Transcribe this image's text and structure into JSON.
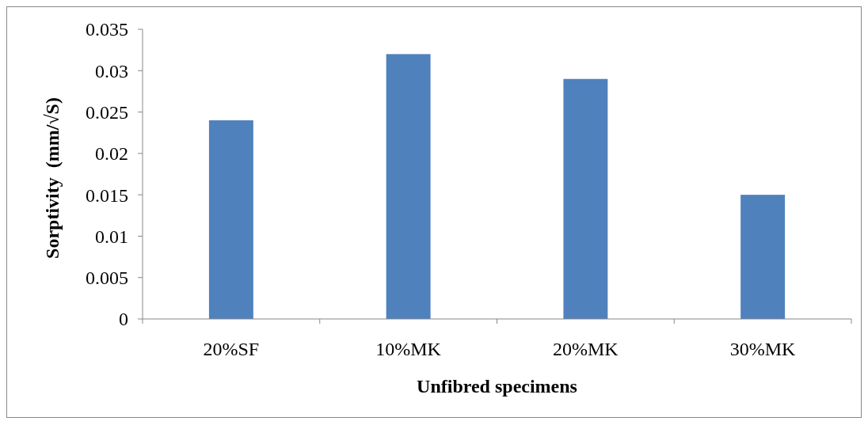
{
  "chart_data": {
    "type": "bar",
    "xlabel": "Unfibred specimens",
    "ylabel": "Sorptivity  (mm/√S)",
    "categories": [
      "20%SF",
      "10%MK",
      "20%MK",
      "30%MK"
    ],
    "values": [
      0.024,
      0.032,
      0.029,
      0.015
    ],
    "color": "#4f81bd",
    "ylim": [
      0,
      0.035
    ],
    "yticks": [
      0,
      0.005,
      0.01,
      0.015,
      0.02,
      0.025,
      0.03,
      0.035
    ],
    "grid": false
  }
}
